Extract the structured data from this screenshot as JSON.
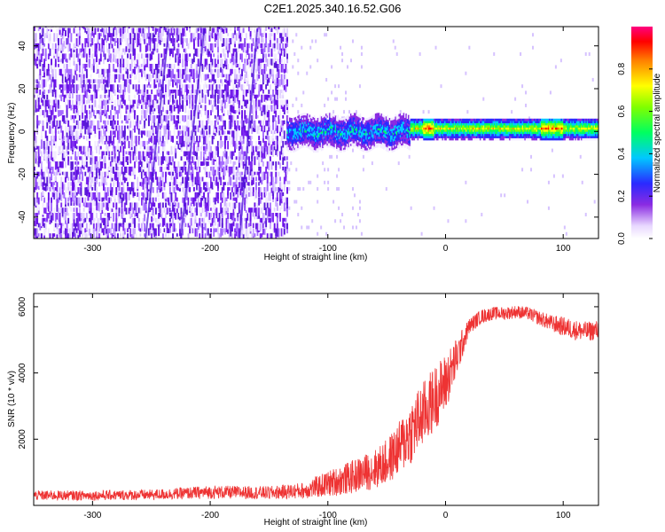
{
  "title": "C2E1.2025.340.16.52.G06",
  "chart_data": [
    {
      "type": "heatmap",
      "title": "C2E1.2025.340.16.52.G06",
      "xlabel": "Height of straight line (km)",
      "ylabel": "Frequency (Hz)",
      "xlim": [
        -350,
        130
      ],
      "ylim": [
        -50,
        49
      ],
      "xticks": [
        -300,
        -200,
        -100,
        0,
        100
      ],
      "yticks": [
        -40,
        -20,
        0,
        20,
        40
      ],
      "colorbar": {
        "label": "Normalized spectral amplitude",
        "range": [
          0,
          1
        ],
        "ticks": [
          0.0,
          0.2,
          0.4,
          0.6,
          0.8
        ]
      },
      "features": [
        {
          "region_x": [
            -350,
            -135
          ],
          "frequency_range": [
            -50,
            49
          ],
          "amplitude": "low (0.05-0.2), noise"
        },
        {
          "region_x": [
            -135,
            -30
          ],
          "frequency_center": 0,
          "half_width": 6,
          "amplitude": "0.2-0.5"
        },
        {
          "region_x": [
            -30,
            130
          ],
          "frequency_center": 1,
          "half_width": 3,
          "amplitude": "0.5-0.95"
        }
      ]
    },
    {
      "type": "line",
      "xlabel": "Height of straight line (km)",
      "ylabel": "SNR (10 * v/v)",
      "xlim": [
        -350,
        130
      ],
      "ylim": [
        0,
        6400
      ],
      "xticks": [
        -300,
        -200,
        -100,
        0,
        100
      ],
      "yticks": [
        2000,
        4000,
        6000
      ],
      "series": [
        {
          "name": "SNR",
          "color": "#ee3333",
          "x": [
            -350,
            -300,
            -250,
            -200,
            -150,
            -120,
            -100,
            -80,
            -60,
            -50,
            -40,
            -30,
            -20,
            -10,
            0,
            10,
            20,
            30,
            40,
            50,
            60,
            70,
            80,
            90,
            100,
            110,
            120,
            130
          ],
          "y": [
            300,
            300,
            320,
            400,
            380,
            450,
            650,
            850,
            1100,
            1300,
            1700,
            2200,
            2700,
            3200,
            3700,
            4500,
            5400,
            5700,
            5800,
            5800,
            5850,
            5800,
            5650,
            5500,
            5400,
            5300,
            5250,
            5300
          ],
          "noise_amplitude": [
            150,
            150,
            160,
            200,
            200,
            250,
            400,
            500,
            600,
            700,
            800,
            1000,
            1000,
            1000,
            900,
            600,
            250,
            220,
            200,
            200,
            200,
            200,
            220,
            250,
            300,
            300,
            300,
            300
          ]
        }
      ]
    }
  ]
}
